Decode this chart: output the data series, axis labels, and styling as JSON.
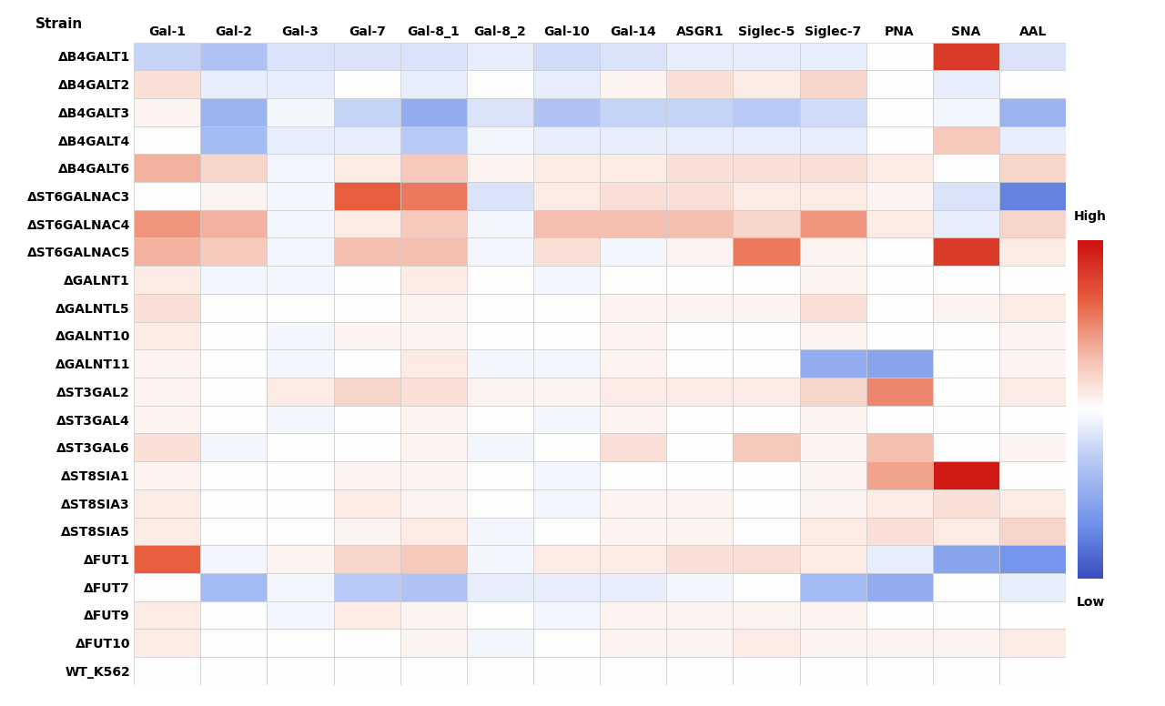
{
  "rows": [
    "ΔB4GALT1",
    "ΔB4GALT2",
    "ΔB4GALT3",
    "ΔB4GALT4",
    "ΔB4GALT6",
    "ΔST6GALNAC3",
    "ΔST6GALNAC4",
    "ΔST6GALNAC5",
    "ΔGALNT1",
    "ΔGALNTL5",
    "ΔGALNT10",
    "ΔGALNT11",
    "ΔST3GAL2",
    "ΔST3GAL4",
    "ΔST3GAL6",
    "ΔST8SIA1",
    "ΔST8SIA3",
    "ΔST8SIA5",
    "ΔFUT1",
    "ΔFUT7",
    "ΔFUT9",
    "ΔFUT10",
    "WT_K562"
  ],
  "cols": [
    "Gal-1",
    "Gal-2",
    "Gal-3",
    "Gal-7",
    "Gal-8_1",
    "Gal-8_2",
    "Gal-10",
    "Gal-14",
    "ASGR1",
    "Siglec-5",
    "Siglec-7",
    "PNA",
    "SNA",
    "AAL"
  ],
  "data": [
    [
      -0.25,
      -0.35,
      -0.15,
      -0.15,
      -0.15,
      -0.1,
      -0.2,
      -0.15,
      -0.1,
      -0.1,
      -0.1,
      0.0,
      0.8,
      -0.15
    ],
    [
      0.15,
      -0.1,
      -0.1,
      0.0,
      -0.1,
      0.0,
      -0.1,
      0.05,
      0.15,
      0.1,
      0.2,
      0.0,
      -0.1,
      0.0
    ],
    [
      0.05,
      -0.45,
      -0.05,
      -0.25,
      -0.5,
      -0.15,
      -0.35,
      -0.25,
      -0.25,
      -0.3,
      -0.2,
      0.0,
      -0.05,
      -0.45
    ],
    [
      0.0,
      -0.4,
      -0.1,
      -0.1,
      -0.3,
      -0.05,
      -0.1,
      -0.1,
      -0.1,
      -0.1,
      -0.1,
      0.0,
      0.25,
      -0.1
    ],
    [
      0.35,
      0.2,
      -0.05,
      0.1,
      0.25,
      0.05,
      0.1,
      0.1,
      0.15,
      0.15,
      0.15,
      0.1,
      0.0,
      0.2
    ],
    [
      0.0,
      0.05,
      -0.05,
      0.65,
      0.55,
      -0.15,
      0.1,
      0.15,
      0.15,
      0.1,
      0.1,
      0.05,
      -0.15,
      -0.75
    ],
    [
      0.45,
      0.35,
      -0.05,
      0.1,
      0.25,
      -0.05,
      0.3,
      0.3,
      0.3,
      0.2,
      0.45,
      0.1,
      -0.1,
      0.2
    ],
    [
      0.35,
      0.25,
      -0.05,
      0.3,
      0.3,
      -0.05,
      0.15,
      -0.05,
      0.05,
      0.55,
      0.05,
      0.0,
      0.8,
      0.1
    ],
    [
      0.1,
      -0.05,
      -0.05,
      0.0,
      0.1,
      0.0,
      -0.05,
      0.0,
      0.0,
      0.0,
      0.05,
      0.0,
      0.0,
      0.0
    ],
    [
      0.15,
      0.0,
      0.0,
      0.0,
      0.05,
      0.0,
      0.0,
      0.05,
      0.05,
      0.05,
      0.15,
      0.0,
      0.05,
      0.1
    ],
    [
      0.1,
      0.0,
      -0.05,
      0.05,
      0.05,
      0.0,
      0.0,
      0.05,
      0.0,
      0.0,
      0.05,
      0.0,
      0.0,
      0.05
    ],
    [
      0.05,
      0.0,
      -0.05,
      0.0,
      0.1,
      -0.05,
      -0.05,
      0.05,
      0.0,
      0.0,
      -0.5,
      -0.55,
      0.0,
      0.05
    ],
    [
      0.05,
      0.0,
      0.1,
      0.2,
      0.15,
      0.05,
      0.05,
      0.1,
      0.1,
      0.1,
      0.2,
      0.5,
      0.0,
      0.1
    ],
    [
      0.05,
      0.0,
      -0.05,
      0.0,
      0.05,
      0.0,
      -0.05,
      0.05,
      0.0,
      0.0,
      0.05,
      0.0,
      0.0,
      0.0
    ],
    [
      0.15,
      -0.05,
      0.0,
      0.0,
      0.05,
      -0.05,
      0.0,
      0.15,
      0.0,
      0.25,
      0.05,
      0.3,
      0.0,
      0.05
    ],
    [
      0.05,
      0.0,
      0.0,
      0.05,
      0.05,
      0.0,
      -0.05,
      0.0,
      0.0,
      0.0,
      0.05,
      0.4,
      0.95,
      0.0
    ],
    [
      0.1,
      0.0,
      0.0,
      0.1,
      0.05,
      0.0,
      -0.05,
      0.05,
      0.05,
      0.0,
      0.05,
      0.1,
      0.15,
      0.1
    ],
    [
      0.1,
      0.0,
      0.0,
      0.05,
      0.1,
      -0.05,
      0.0,
      0.05,
      0.05,
      0.0,
      0.1,
      0.15,
      0.1,
      0.2
    ],
    [
      0.65,
      -0.05,
      0.05,
      0.2,
      0.25,
      -0.05,
      0.1,
      0.1,
      0.15,
      0.15,
      0.1,
      -0.1,
      -0.55,
      -0.65
    ],
    [
      0.0,
      -0.4,
      -0.05,
      -0.3,
      -0.35,
      -0.1,
      -0.1,
      -0.1,
      -0.05,
      0.0,
      -0.4,
      -0.5,
      0.0,
      -0.1
    ],
    [
      0.1,
      0.0,
      -0.05,
      0.1,
      0.05,
      0.0,
      -0.05,
      0.05,
      0.05,
      0.05,
      0.05,
      0.0,
      0.0,
      0.0
    ],
    [
      0.1,
      0.0,
      0.0,
      0.0,
      0.05,
      -0.05,
      0.0,
      0.05,
      0.05,
      0.1,
      0.05,
      0.05,
      0.05,
      0.1
    ],
    [
      0.0,
      0.0,
      0.0,
      0.0,
      0.0,
      0.0,
      0.0,
      0.0,
      0.0,
      0.0,
      0.0,
      0.0,
      0.0,
      0.0
    ]
  ],
  "colorbar_label_high": "High",
  "colorbar_label_low": "Low",
  "background_color": "#ffffff",
  "grid_color": "#cccccc",
  "label_fontsize": 10,
  "strain_fontsize": 11
}
